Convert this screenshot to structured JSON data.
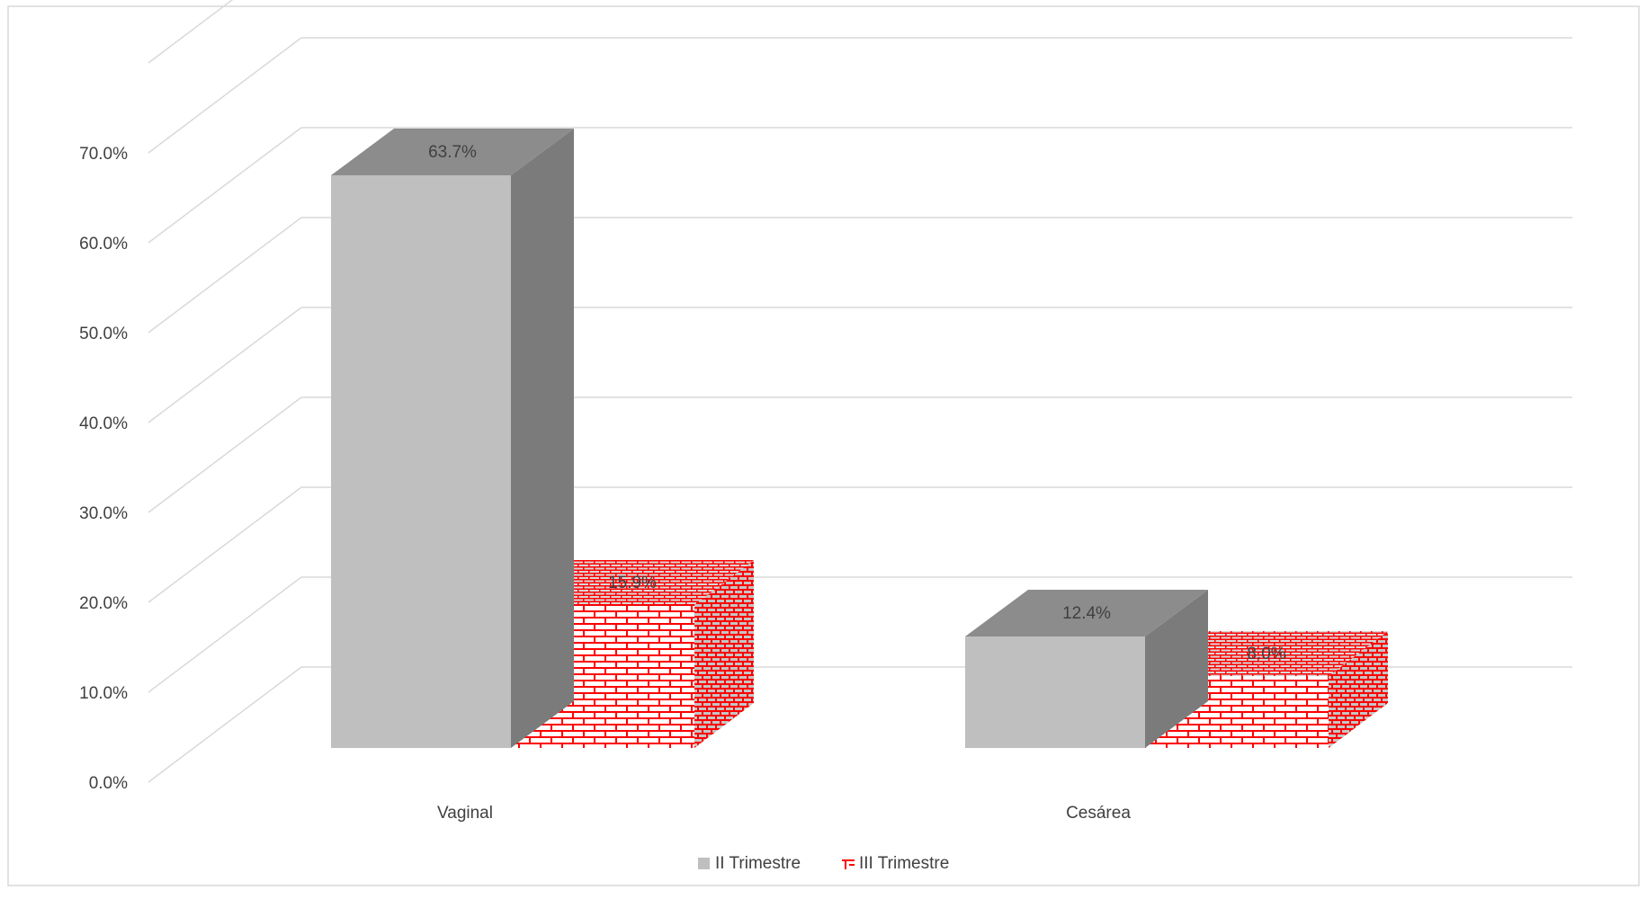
{
  "chart_data": {
    "type": "bar",
    "categories": [
      "Vaginal",
      "Cesárea"
    ],
    "series": [
      {
        "name": "II Trimestre",
        "values": [
          63.7,
          12.4
        ],
        "labels": [
          "63.7%",
          "12.4%"
        ]
      },
      {
        "name": "III Trimestre",
        "values": [
          15.9,
          8.0
        ],
        "labels": [
          "15.9%",
          "8.0%"
        ]
      }
    ],
    "y_ticks": [
      "0.0%",
      "10.0%",
      "20.0%",
      "30.0%",
      "40.0%",
      "50.0%",
      "60.0%",
      "70.0%"
    ],
    "ylim": [
      0,
      80
    ],
    "grid": true,
    "legend_position": "bottom",
    "three_d": true,
    "colors": {
      "series1_front": "#bfbfbf",
      "series1_top": "#8c8c8c",
      "series1_side": "#7b7b7b",
      "series2_brick": "#ff0000",
      "grid": "#d9d9d9",
      "text": "#404040"
    }
  }
}
